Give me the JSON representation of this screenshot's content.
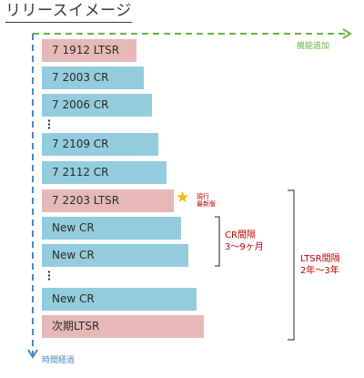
{
  "title": "リリースイメージ",
  "axes": {
    "x_label": "機能追加",
    "y_label": "時間経過",
    "x_color": "#6cb33f",
    "y_color": "#4a86c5"
  },
  "colors": {
    "ltsr": "#e6b9b8",
    "cr": "#93cddd",
    "annotation": "#c00000",
    "star": "#f5b800"
  },
  "releases": [
    {
      "label": "7 1912 LTSR",
      "type": "LTSR"
    },
    {
      "label": "7 2003 CR",
      "type": "CR"
    },
    {
      "label": "7 2006 CR",
      "type": "CR"
    },
    {
      "label": "7 2109 CR",
      "type": "CR"
    },
    {
      "label": "7 2112 CR",
      "type": "CR"
    },
    {
      "label": "7 2203 LTSR",
      "type": "LTSR"
    },
    {
      "label": "New CR",
      "type": "CR"
    },
    {
      "label": "New CR",
      "type": "CR"
    },
    {
      "label": "New CR",
      "type": "CR"
    },
    {
      "label": "次期LTSR",
      "type": "LTSR"
    }
  ],
  "current_marker": {
    "icon": "star-icon",
    "note_line1": "現行",
    "note_line2": "最新版"
  },
  "cr_interval": {
    "line1": "CR間隔",
    "line2": "3～9ヶ月"
  },
  "ltsr_interval": {
    "line1": "LTSR間隔",
    "line2": "2年～3年"
  }
}
